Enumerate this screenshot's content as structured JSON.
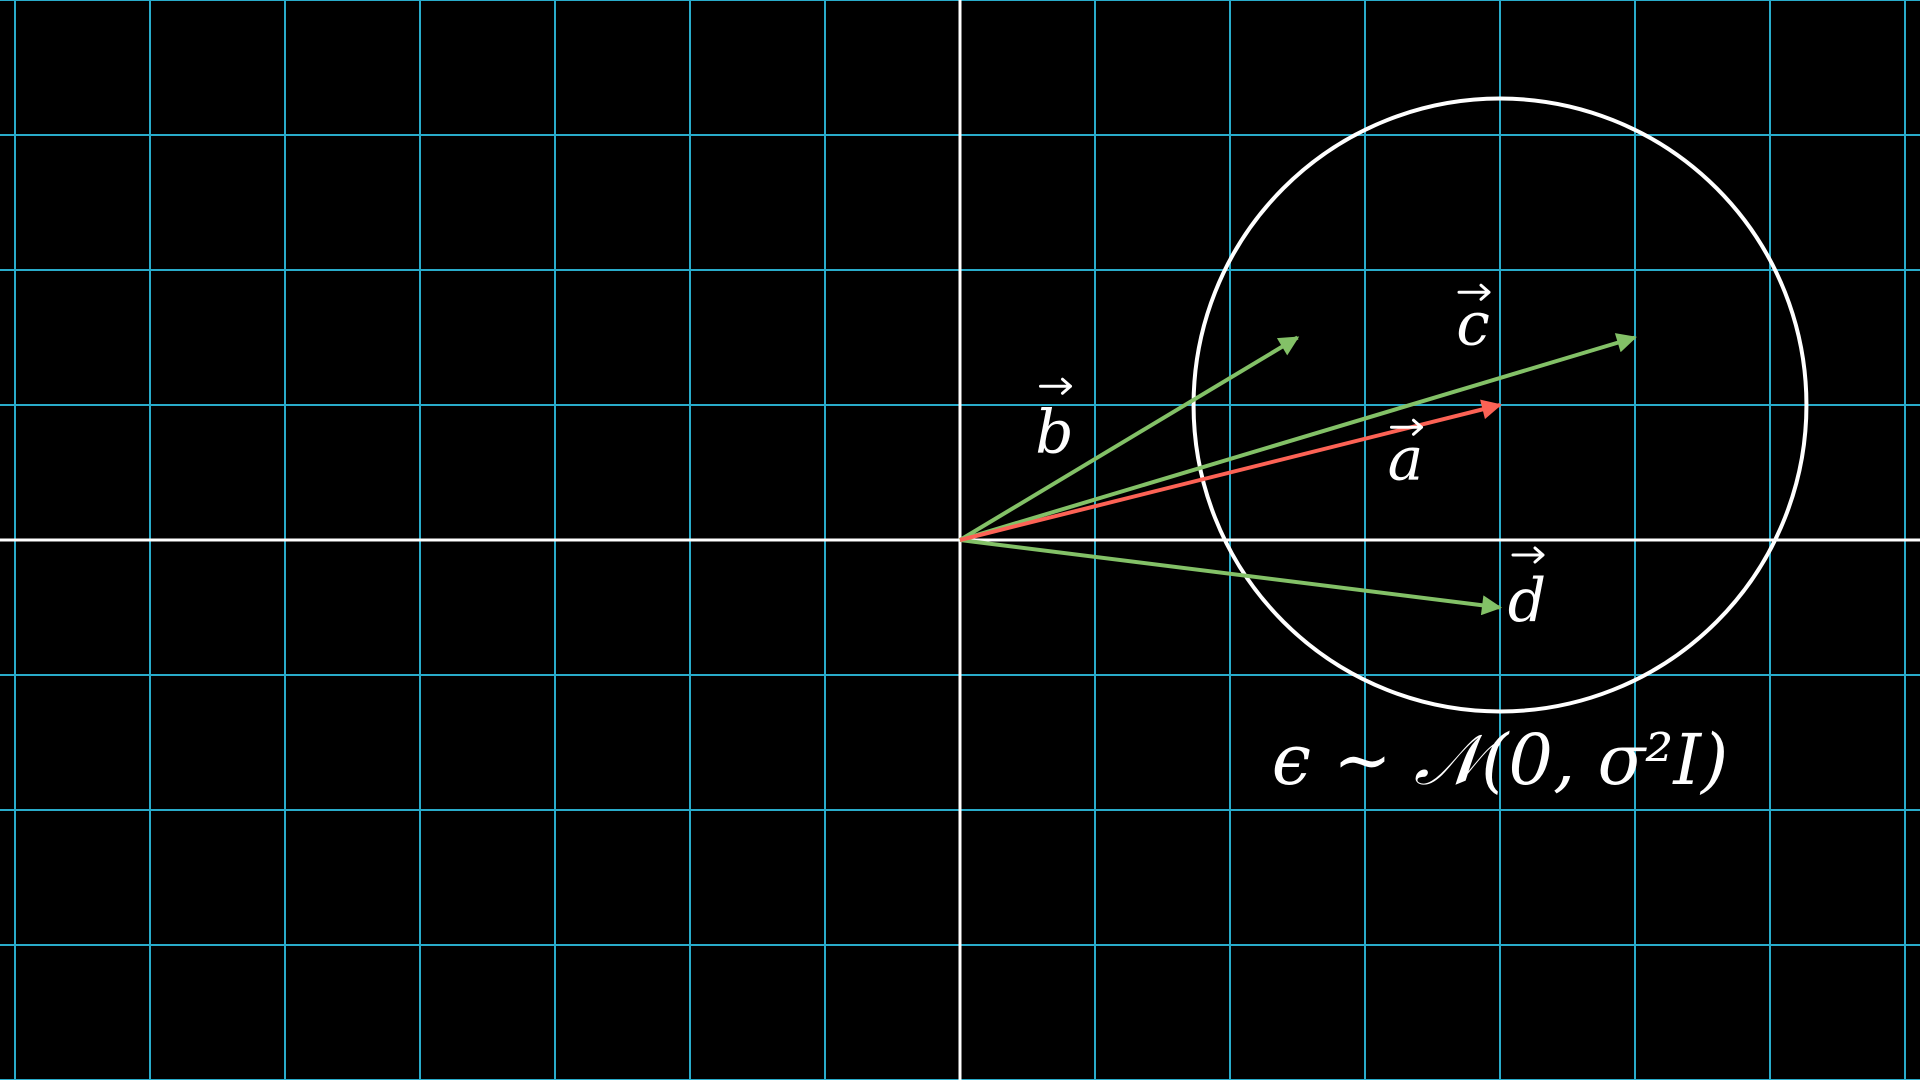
{
  "title": "",
  "colors": {
    "background": "#000000",
    "grid": "#29abca",
    "axis": "#ffffff",
    "circle": "#ffffff",
    "label": "#ffffff",
    "vector_red": "#fc6255",
    "vector_green": "#83c167"
  },
  "plane": {
    "x_range": [
      -7.1,
      7.1
    ],
    "y_range": [
      -4,
      4
    ],
    "grid_step": 1,
    "axes_origin": [
      0,
      0
    ]
  },
  "vectors": [
    {
      "id": "a",
      "label": "a",
      "tip": [
        4,
        1
      ],
      "color": "#fc6255",
      "label_at": [
        3.3,
        0.45
      ]
    },
    {
      "id": "b",
      "label": "b",
      "tip": [
        2.5,
        1.5
      ],
      "color": "#83c167",
      "label_at": [
        0.7,
        0.65
      ]
    },
    {
      "id": "c",
      "label": "c",
      "tip": [
        5,
        1.5
      ],
      "color": "#83c167",
      "label_at": [
        3.8,
        1.45
      ]
    },
    {
      "id": "d",
      "label": "d",
      "tip": [
        4,
        -0.5
      ],
      "color": "#83c167",
      "label_at": [
        4.2,
        -0.6
      ]
    }
  ],
  "noise_circle": {
    "center": [
      4,
      1
    ],
    "radius": 2.27
  },
  "formula": {
    "text": "ϵ ∼ 𝒩(0, σ²I)",
    "anchor": [
      4,
      -1.6
    ]
  }
}
